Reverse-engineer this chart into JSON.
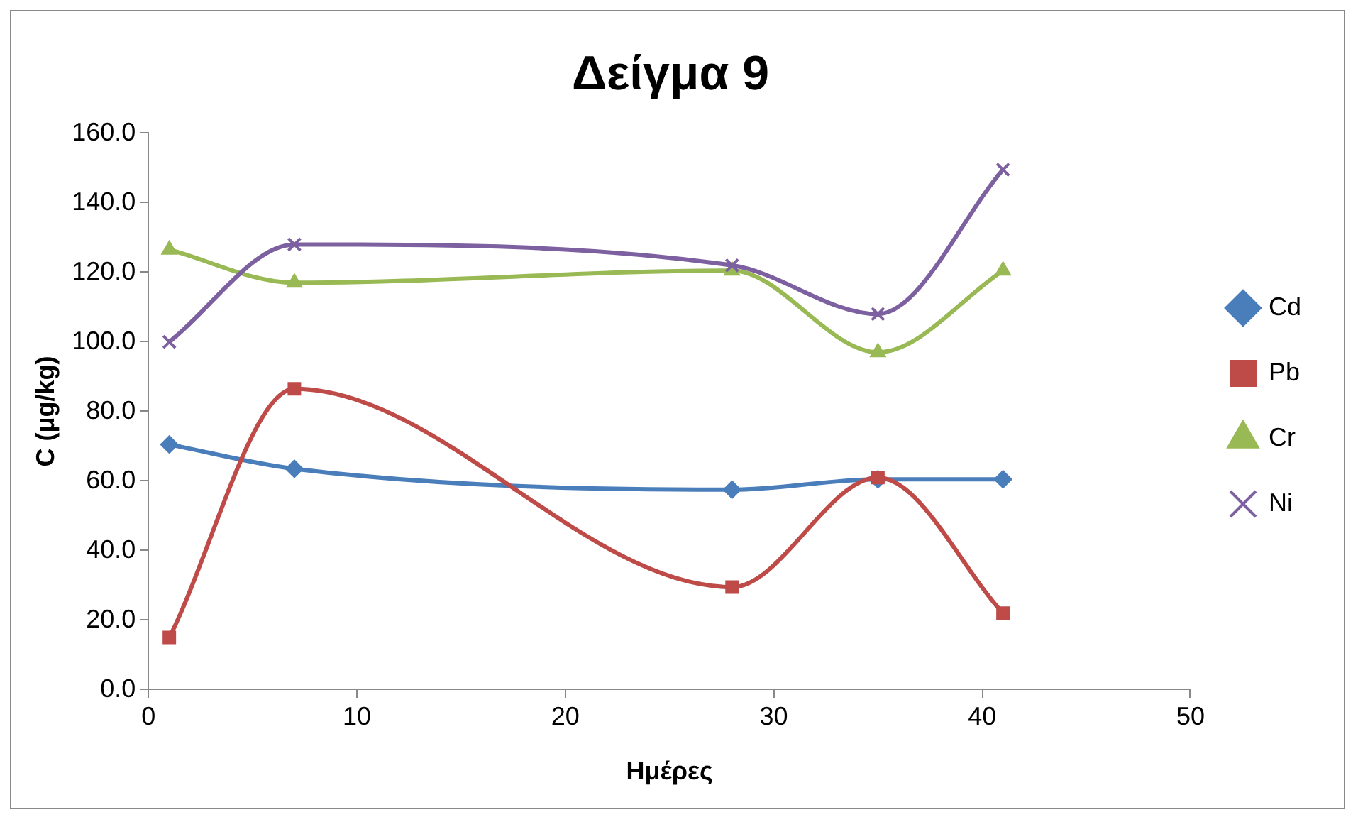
{
  "chart_data": {
    "type": "line",
    "title": "Δείγμα 9",
    "xlabel": "Ημέρες",
    "ylabel": "C (μg/kg)",
    "x": [
      1,
      7,
      28,
      35,
      41
    ],
    "series": [
      {
        "name": "Cd",
        "color": "#4a7ebb",
        "marker": "diamond",
        "values": [
          70.5,
          63.5,
          57.5,
          60.5,
          60.5
        ]
      },
      {
        "name": "Pb",
        "color": "#be4b48",
        "marker": "square",
        "values": [
          15,
          86.5,
          29.5,
          61,
          22
        ]
      },
      {
        "name": "Cr",
        "color": "#98b954",
        "marker": "triangle",
        "values": [
          126.5,
          117,
          120.5,
          97,
          120.5
        ]
      },
      {
        "name": "Ni",
        "color": "#7d60a0",
        "marker": "cross",
        "values": [
          100,
          128,
          122,
          108,
          149.5
        ]
      }
    ],
    "xlim": [
      0,
      50
    ],
    "xticks": [
      0,
      10,
      20,
      30,
      40,
      50
    ],
    "ylim": [
      0,
      160
    ],
    "yticks": [
      {
        "value": 0,
        "label": "0.0"
      },
      {
        "value": 20,
        "label": "20.0"
      },
      {
        "value": 40,
        "label": "40.0"
      },
      {
        "value": 60,
        "label": "60.0"
      },
      {
        "value": 80,
        "label": "80.0"
      },
      {
        "value": 100,
        "label": "100.0"
      },
      {
        "value": 120,
        "label": "120.0"
      },
      {
        "value": 140,
        "label": "140.0"
      },
      {
        "value": 160,
        "label": "160.0"
      }
    ],
    "grid": false,
    "legend": "right",
    "line_style": "solid"
  }
}
